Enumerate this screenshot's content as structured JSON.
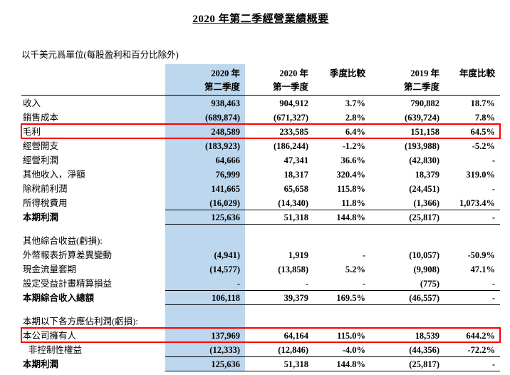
{
  "page": {
    "title": "2020 年第二季經營業績概要",
    "subtitle": "以千美元爲單位(每股盈利和百分比除外)"
  },
  "colors": {
    "column_highlight": "#BDD7EE",
    "red_box": "#FF0000"
  },
  "table": {
    "columns": [
      {
        "line1": "2020 年",
        "line2": "第二季度",
        "highlighted": true
      },
      {
        "line1": "2020 年",
        "line2": "第一季度",
        "highlighted": false
      },
      {
        "line1": "季度比較",
        "line2": "",
        "highlighted": false
      },
      {
        "line1": "2019 年",
        "line2": "第二季度",
        "highlighted": false
      },
      {
        "line1": "年度比較",
        "line2": "",
        "highlighted": false
      }
    ],
    "rows": [
      {
        "label": "收入",
        "values": [
          "938,463",
          "904,912",
          "3.7%",
          "790,882",
          "18.7%"
        ]
      },
      {
        "label": "銷售成本",
        "values": [
          "(689,874)",
          "(671,327)",
          "2.8%",
          "(639,724)",
          "7.8%"
        ]
      },
      {
        "label": "毛利",
        "values": [
          "248,589",
          "233,585",
          "6.4%",
          "151,158",
          "64.5%"
        ],
        "red_box": true
      },
      {
        "label": "經營開支",
        "values": [
          "(183,923)",
          "(186,244)",
          "-1.2%",
          "(193,988)",
          "-5.2%"
        ]
      },
      {
        "label": "經營利潤",
        "values": [
          "64,666",
          "47,341",
          "36.6%",
          "(42,830)",
          "-"
        ]
      },
      {
        "label": "其他收入，淨額",
        "values": [
          "76,999",
          "18,317",
          "320.4%",
          "18,379",
          "319.0%"
        ]
      },
      {
        "label": "除稅前利潤",
        "values": [
          "141,665",
          "65,658",
          "115.8%",
          "(24,451)",
          "-"
        ]
      },
      {
        "label": "所得稅費用",
        "values": [
          "(16,029)",
          "(14,340)",
          "11.8%",
          "(1,366)",
          "1,073.4%"
        ]
      },
      {
        "label": "本期利潤",
        "values": [
          "125,636",
          "51,318",
          "144.8%",
          "(25,817)",
          "-"
        ],
        "bold": true,
        "line_top": true,
        "line_bottom": true
      },
      {
        "label": "",
        "values": [
          "",
          "",
          "",
          "",
          ""
        ],
        "spacer": true
      },
      {
        "label": "其他綜合收益(虧損):",
        "values": [
          "",
          "",
          "",
          "",
          ""
        ],
        "section": true
      },
      {
        "label": "外幣報表折算差異變動",
        "values": [
          "(4,941)",
          "1,919",
          "-",
          "(10,057)",
          "-50.9%"
        ]
      },
      {
        "label": "現金流量套期",
        "values": [
          "(14,577)",
          "(13,858)",
          "5.2%",
          "(9,908)",
          "47.1%"
        ]
      },
      {
        "label": "設定受益計畫精算損益",
        "values": [
          "-",
          "-",
          "-",
          "(775)",
          "-"
        ]
      },
      {
        "label": "本期綜合收入總額",
        "values": [
          "106,118",
          "39,379",
          "169.5%",
          "(46,557)",
          "-"
        ],
        "bold": true,
        "line_top": true,
        "line_bottom": true
      },
      {
        "label": "",
        "values": [
          "",
          "",
          "",
          "",
          ""
        ],
        "spacer": true
      },
      {
        "label": "本期以下各方應佔利潤(虧損):",
        "values": [
          "",
          "",
          "",
          "",
          ""
        ],
        "section": true
      },
      {
        "label": "本公司擁有人",
        "values": [
          "137,969",
          "64,164",
          "115.0%",
          "18,539",
          "644.2%"
        ],
        "red_box": true
      },
      {
        "label": "非控制性權益",
        "values": [
          "(12,333)",
          "(12,846)",
          "-4.0%",
          "(44,356)",
          "-72.2%"
        ],
        "indent": true
      },
      {
        "label": "本期利潤",
        "values": [
          "125,636",
          "51,318",
          "144.8%",
          "(25,817)",
          "-"
        ],
        "bold": true,
        "line_top": true,
        "line_bottom": true
      }
    ]
  }
}
